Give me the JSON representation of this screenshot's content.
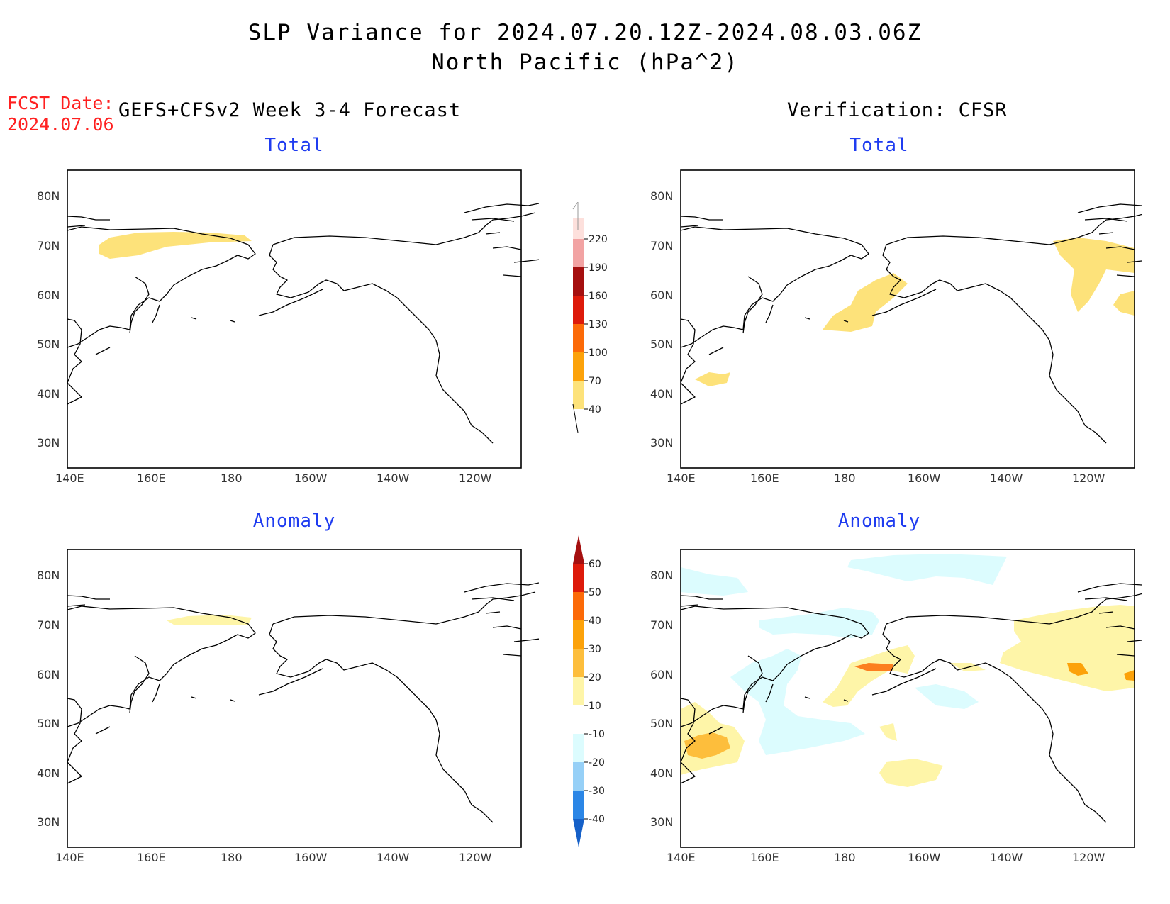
{
  "header": {
    "title_line1": "SLP Variance for 2024.07.20.12Z-2024.08.03.06Z",
    "title_line2": "North Pacific (hPa^2)",
    "fcst_label": "FCST Date:",
    "fcst_date": "2024.07.06",
    "left_heading": "GEFS+CFSv2 Week 3-4 Forecast",
    "right_heading": "Verification: CFSR"
  },
  "panels": {
    "top_left_title": "Total",
    "top_right_title": "Total",
    "bottom_left_title": "Anomaly",
    "bottom_right_title": "Anomaly"
  },
  "axes": {
    "lon_labels": [
      "140E",
      "160E",
      "180",
      "160W",
      "140W",
      "120W"
    ],
    "lat_labels": [
      "80N",
      "70N",
      "60N",
      "50N",
      "40N",
      "30N"
    ]
  },
  "colorbars": {
    "total": {
      "labels": [
        "220",
        "190",
        "160",
        "130",
        "100",
        "70",
        "40"
      ],
      "colors": [
        "#fde0dc",
        "#f2a3a3",
        "#a50f0f",
        "#dd1a0a",
        "#fc6a08",
        "#fca20a",
        "#fde27a"
      ]
    },
    "anomaly": {
      "labels": [
        "60",
        "50",
        "40",
        "30",
        "20",
        "10",
        "-10",
        "-20",
        "-30",
        "-40"
      ],
      "colors": [
        "#a50f0f",
        "#dd1a0a",
        "#fc6a08",
        "#fca20a",
        "#fdbe3c",
        "#fef5a8",
        "#ffffff",
        "#dcfcfe",
        "#96d0f7",
        "#2b86e6",
        "#1560c8"
      ]
    }
  }
}
